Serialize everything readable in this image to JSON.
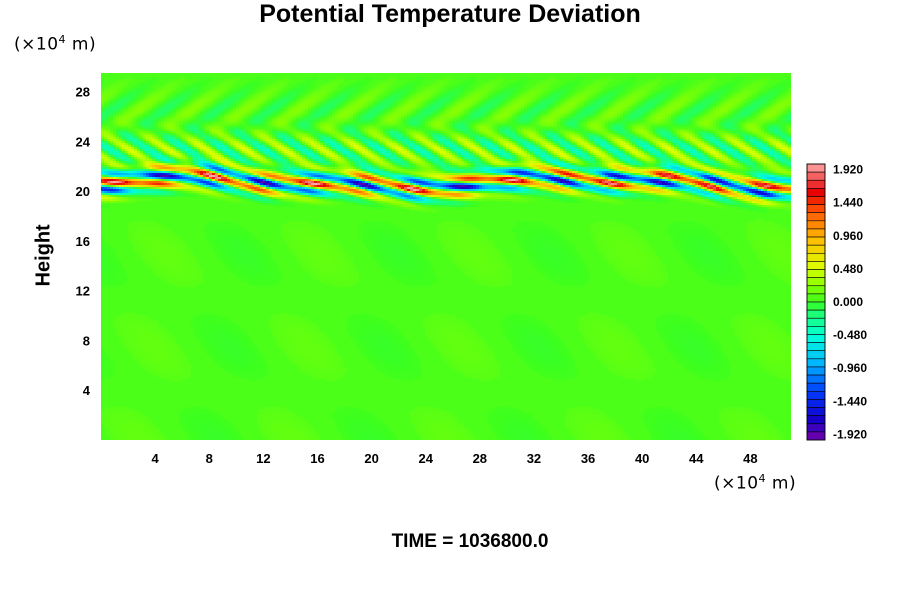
{
  "chart_data": {
    "type": "heatmap",
    "title": "Potential Temperature Deviation",
    "ylabel": "Height",
    "x_unit_label": {
      "prefix": "(×10",
      "exp": "4",
      "suffix": " m)"
    },
    "y_unit_label": {
      "prefix": "(×10",
      "exp": "4",
      "suffix": " m)"
    },
    "x_ticks": [
      4,
      8,
      12,
      16,
      20,
      24,
      28,
      32,
      36,
      40,
      44,
      48
    ],
    "y_ticks": [
      4,
      8,
      12,
      16,
      20,
      24,
      28
    ],
    "xlim": [
      0,
      51
    ],
    "ylim": [
      0,
      29.5
    ],
    "colorbar": {
      "labels": [
        "1.920",
        "1.440",
        "0.960",
        "0.480",
        "0.000",
        "-0.480",
        "-0.960",
        "-1.440",
        "-1.920"
      ],
      "values": [
        1.92,
        1.44,
        0.96,
        0.48,
        0.0,
        -0.48,
        -0.96,
        -1.44,
        -1.92
      ],
      "range": [
        -2.0,
        2.0
      ]
    },
    "field_description": {
      "background_value": 0.05,
      "disturbance_band_height_range": [
        19.5,
        22.5
      ],
      "disturbance_amplitude_max": 2.0
    },
    "time_label": "TIME = 1036800.0",
    "colors": {
      "background": "#ffffff",
      "field_base": "#33ff00"
    }
  }
}
